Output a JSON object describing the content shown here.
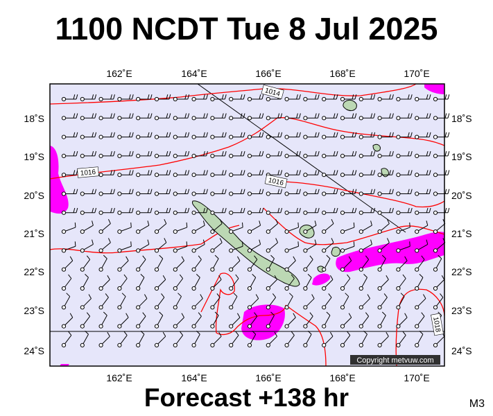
{
  "header": {
    "title": "1100 NCDT Tue 8 Jul 2025"
  },
  "footer": {
    "forecast": "Forecast +138 hr",
    "code": "M3"
  },
  "map": {
    "copyright": "Copyright metvuw.com",
    "lon_labels": [
      "162˚E",
      "164˚E",
      "166˚E",
      "168˚E",
      "170˚E"
    ],
    "lat_labels": [
      "18˚S",
      "19˚S",
      "20˚S",
      "21˚S",
      "22˚S",
      "23˚S",
      "24˚S"
    ],
    "isobar_labels": [
      "1014",
      "1016",
      "1016",
      "1018"
    ],
    "colors": {
      "sea": "#e6e6fa",
      "land": "#bcd8b4",
      "isobar": "#ff0000",
      "rain": "#ff00ff"
    }
  }
}
